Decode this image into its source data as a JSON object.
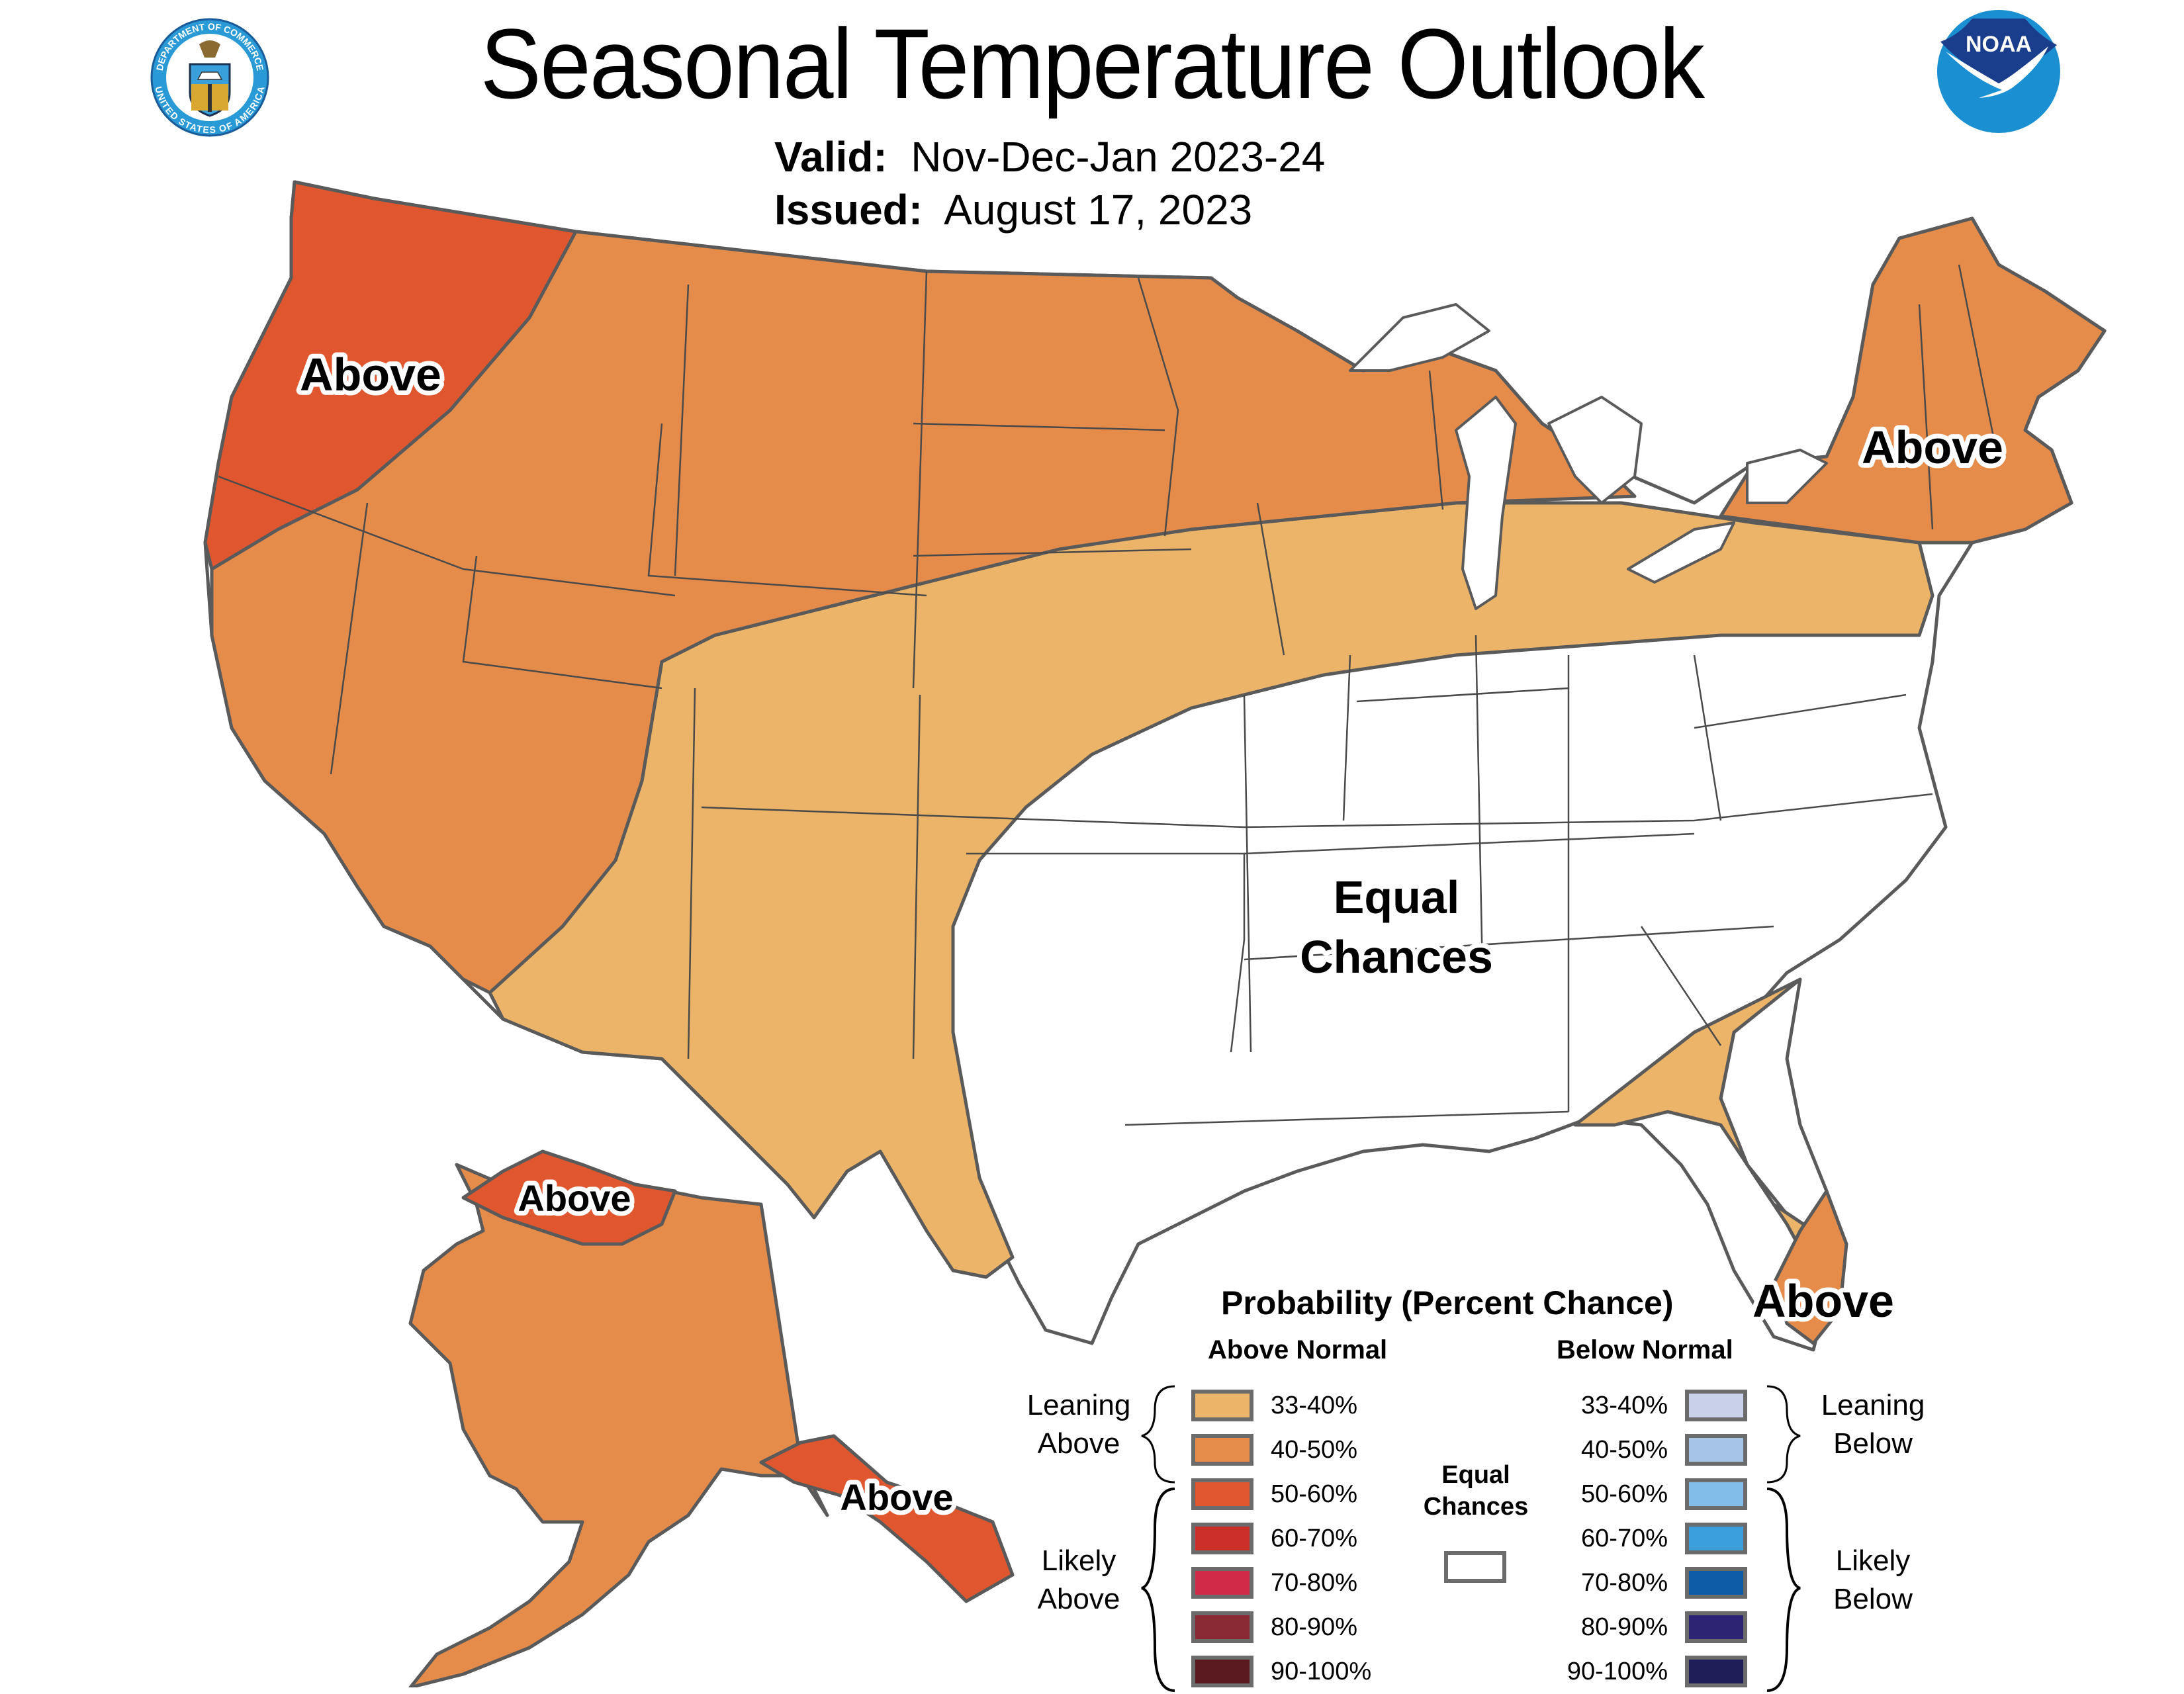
{
  "header": {
    "title": "Seasonal Temperature Outlook",
    "valid_label": "Valid:",
    "valid_value": "Nov-Dec-Jan 2023-24",
    "issued_label": "Issued:",
    "issued_value": "August 17, 2023",
    "left_logo": "department-of-commerce-seal",
    "left_logo_text_top": "DEPARTMENT OF COMMERCE",
    "left_logo_text_bottom": "UNITED STATES OF AMERICA",
    "right_logo": "noaa-logo",
    "right_logo_text": "NOAA"
  },
  "map": {
    "regions": [
      {
        "id": "pacific-northwest",
        "label": "Above",
        "category": "50-60%",
        "color": "#e0572f"
      },
      {
        "id": "northern-tier",
        "label": "",
        "category": "40-50%",
        "color": "#e58c4b"
      },
      {
        "id": "northeast",
        "label": "Above",
        "category": "40-50%",
        "color": "#e58c4b"
      },
      {
        "id": "central-band",
        "label": "",
        "category": "33-40%",
        "color": "#ebb468"
      },
      {
        "id": "southeast-coast-florida",
        "label": "",
        "category": "33-40%",
        "color": "#ebb468"
      },
      {
        "id": "south-florida",
        "label": "Above",
        "category": "40-50%",
        "color": "#e58c4b"
      },
      {
        "id": "equal-chances",
        "label": "Equal Chances",
        "category": "Equal Chances",
        "color": "#ffffff"
      },
      {
        "id": "alaska-main",
        "label": "",
        "category": "40-50%",
        "color": "#e58c4b"
      },
      {
        "id": "alaska-north-slope",
        "label": "Above",
        "category": "50-60%",
        "color": "#e0572f"
      },
      {
        "id": "alaska-southeast",
        "label": "Above",
        "category": "50-60%",
        "color": "#e0572f"
      }
    ],
    "labels": {
      "pnw": "Above",
      "northeast": "Above",
      "equal_line1": "Equal",
      "equal_line2": "Chances",
      "florida": "Above",
      "ak_north": "Above",
      "ak_southeast": "Above"
    }
  },
  "legend": {
    "title": "Probability (Percent Chance)",
    "above_header": "Above Normal",
    "below_header": "Below Normal",
    "equal_chances_line1": "Equal",
    "equal_chances_line2": "Chances",
    "equal_color": "#ffffff",
    "leaning_above_line1": "Leaning",
    "leaning_above_line2": "Above",
    "likely_above_line1": "Likely",
    "likely_above_line2": "Above",
    "leaning_below_line1": "Leaning",
    "leaning_below_line2": "Below",
    "likely_below_line1": "Likely",
    "likely_below_line2": "Below",
    "above": [
      {
        "range": "33-40%",
        "color": "#ebb468"
      },
      {
        "range": "40-50%",
        "color": "#e58c4b"
      },
      {
        "range": "50-60%",
        "color": "#e0572f"
      },
      {
        "range": "60-70%",
        "color": "#cc2e2a"
      },
      {
        "range": "70-80%",
        "color": "#d02a48"
      },
      {
        "range": "80-90%",
        "color": "#8a2a34"
      },
      {
        "range": "90-100%",
        "color": "#5a1a20"
      }
    ],
    "below": [
      {
        "range": "33-40%",
        "color": "#c8d0ea"
      },
      {
        "range": "40-50%",
        "color": "#a6c4e6"
      },
      {
        "range": "50-60%",
        "color": "#82bce8"
      },
      {
        "range": "60-70%",
        "color": "#3a9fdc"
      },
      {
        "range": "70-80%",
        "color": "#0e5ca8"
      },
      {
        "range": "80-90%",
        "color": "#2e2474"
      },
      {
        "range": "90-100%",
        "color": "#201e58"
      }
    ]
  }
}
